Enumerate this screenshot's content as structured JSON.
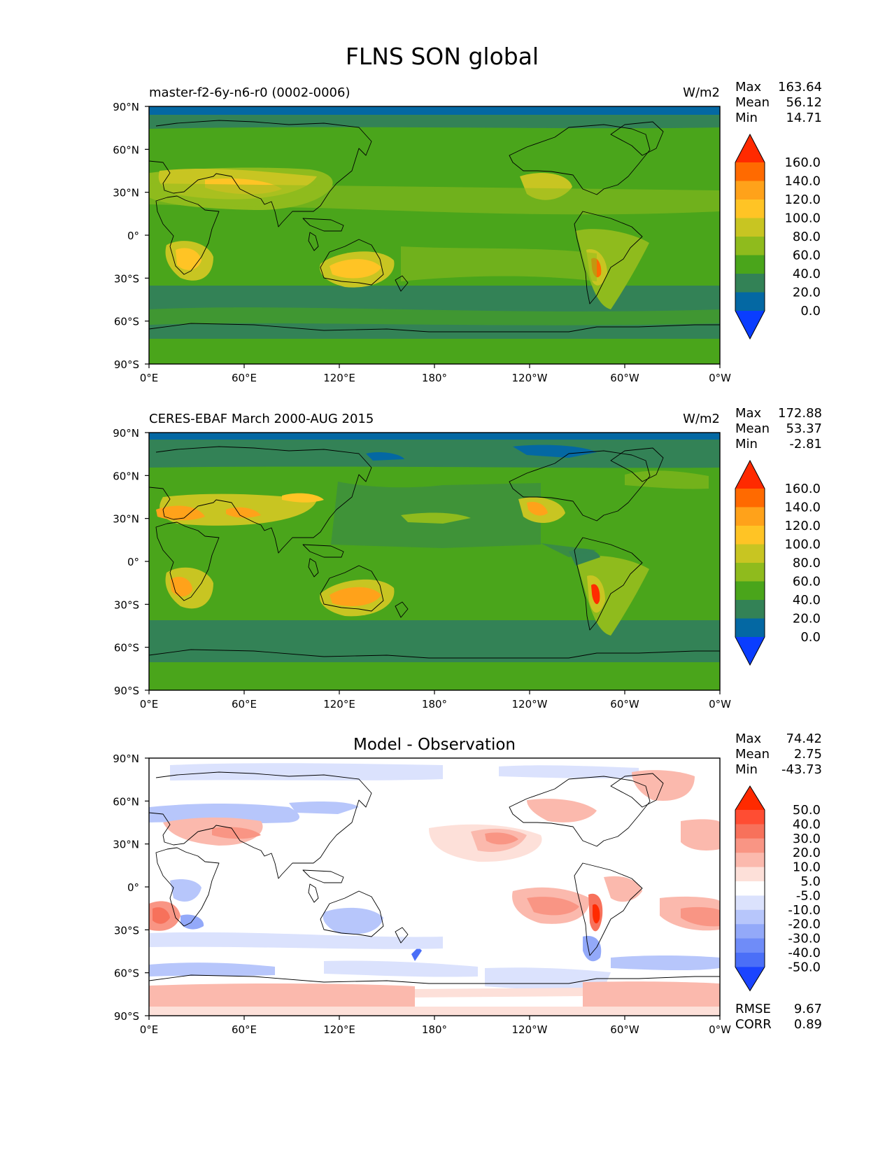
{
  "title": "FLNS SON global",
  "axes": {
    "lat_ticks": [
      "90°N",
      "60°N",
      "30°N",
      "0°",
      "30°S",
      "60°S",
      "90°S"
    ],
    "lon_ticks": [
      "0°E",
      "60°E",
      "120°E",
      "180°",
      "120°W",
      "60°W",
      "0°W"
    ]
  },
  "abs_levels": [
    "160.0",
    "140.0",
    "120.0",
    "100.0",
    "80.0",
    "60.0",
    "40.0",
    "20.0",
    "0.0"
  ],
  "abs_colors": [
    "#ff2a00",
    "#ff6a00",
    "#ffa21a",
    "#ffc425",
    "#c8c522",
    "#8fbb1d",
    "#4aa51b",
    "#338256",
    "#0468a3",
    "#0a3dff"
  ],
  "diff_levels": [
    "50.0",
    "40.0",
    "30.0",
    "20.0",
    "10.0",
    "5.0",
    "-5.0",
    "-10.0",
    "-20.0",
    "-30.0",
    "-40.0",
    "-50.0"
  ],
  "diff_colors": [
    "#ff2a00",
    "#ff4d33",
    "#f7715b",
    "#f99584",
    "#fbb9ad",
    "#fde0d9",
    "#ffffff",
    "#dbe2fd",
    "#b7c6fb",
    "#93a9f9",
    "#6f8cf8",
    "#4b6ff7",
    "#1b44ff"
  ],
  "panels": [
    {
      "id": "model",
      "left_title": "master-f2-6y-n6-r0 (0002-0006)",
      "center_title": "",
      "units": "W/m2",
      "stats": [
        {
          "label": "Max",
          "value": "163.64"
        },
        {
          "label": "Mean",
          "value": "56.12"
        },
        {
          "label": "Min",
          "value": "14.71"
        }
      ]
    },
    {
      "id": "obs",
      "left_title": "CERES-EBAF March 2000-AUG 2015",
      "center_title": "",
      "units": "W/m2",
      "stats": [
        {
          "label": "Max",
          "value": "172.88"
        },
        {
          "label": "Mean",
          "value": "53.37"
        },
        {
          "label": "Min",
          "value": "-2.81"
        }
      ]
    },
    {
      "id": "diff",
      "left_title": "",
      "center_title": "Model - Observation",
      "units": "",
      "stats": [
        {
          "label": "Max",
          "value": "74.42"
        },
        {
          "label": "Mean",
          "value": "2.75"
        },
        {
          "label": "Min",
          "value": "-43.73"
        }
      ],
      "metrics": [
        {
          "label": "RMSE",
          "value": "9.67"
        },
        {
          "label": "CORR",
          "value": "0.89"
        }
      ]
    }
  ]
}
